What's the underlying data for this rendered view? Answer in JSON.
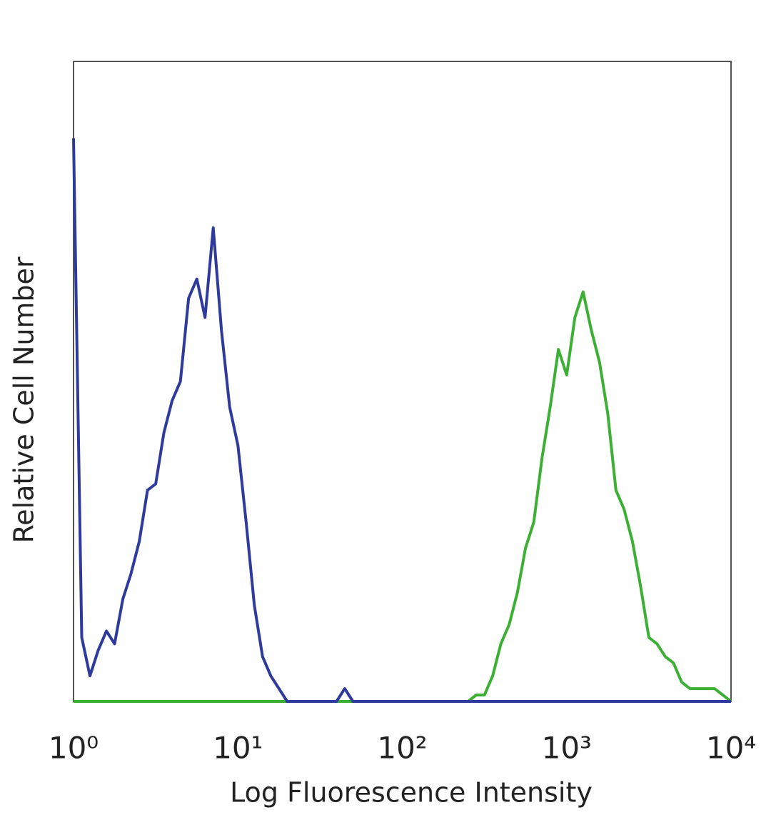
{
  "chart_data": {
    "type": "line",
    "xlabel": "Log Fluorescence Intensity",
    "ylabel": "Relative Cell Number",
    "xscale": "log",
    "xlim": [
      1,
      10000
    ],
    "xticks": [
      {
        "value": 1,
        "label": "10⁰"
      },
      {
        "value": 10,
        "label": "10¹"
      },
      {
        "value": 100,
        "label": "10²"
      },
      {
        "value": 1000,
        "label": "10³"
      },
      {
        "value": 10000,
        "label": "10⁴"
      }
    ],
    "ylim": [
      0,
      100
    ],
    "grid": false,
    "x": [
      1,
      1.122,
      1.259,
      1.413,
      1.585,
      1.778,
      1.995,
      2.239,
      2.512,
      2.818,
      3.162,
      3.548,
      3.981,
      4.467,
      5.012,
      5.623,
      6.31,
      7.079,
      7.943,
      8.913,
      10,
      11.22,
      12.59,
      14.13,
      15.85,
      17.78,
      19.95,
      22.39,
      25.12,
      28.18,
      31.62,
      35.48,
      39.81,
      44.67,
      50.12,
      56.23,
      63.1,
      70.79,
      79.43,
      89.13,
      100,
      112.2,
      125.9,
      141.3,
      158.5,
      177.8,
      199.5,
      223.9,
      251.2,
      281.8,
      316.2,
      354.8,
      398.1,
      446.7,
      501.2,
      562.3,
      631,
      707.9,
      794.3,
      891.3,
      1000,
      1122,
      1259,
      1413,
      1585,
      1778,
      1995,
      2239,
      2512,
      2818,
      3162,
      3548,
      3981,
      4467,
      5012,
      5623,
      6310,
      7079,
      7943,
      8913,
      10000
    ],
    "series": [
      {
        "color": "#3cb034",
        "values": [
          0,
          0,
          0,
          0,
          0,
          0,
          0,
          0,
          0,
          0,
          0,
          0,
          0,
          0,
          0,
          0,
          0,
          0,
          0,
          0,
          0,
          0,
          0,
          0,
          0,
          0,
          0,
          0,
          0,
          0,
          0,
          0,
          0,
          0,
          0,
          0,
          0,
          0,
          0,
          0,
          0,
          0,
          0,
          0,
          0,
          0,
          0,
          0,
          0,
          1,
          1,
          4,
          9,
          12,
          17,
          24,
          28,
          38,
          46,
          55,
          51,
          60,
          64,
          58,
          53,
          45,
          33,
          30,
          25,
          18,
          10,
          9,
          7,
          6,
          3,
          2,
          2,
          2,
          2,
          1,
          0
        ]
      },
      {
        "color": "#2e3a9c",
        "values": [
          88,
          10,
          4,
          8,
          11,
          9,
          16,
          20,
          25,
          33,
          34,
          42,
          47,
          50,
          63,
          66,
          60,
          74,
          58,
          46,
          40,
          28,
          15,
          7,
          4,
          2,
          0,
          0,
          0,
          0,
          0,
          0,
          0,
          2,
          0,
          0,
          0,
          0,
          0,
          0,
          0,
          0,
          0,
          0,
          0,
          0,
          0,
          0,
          0,
          0,
          0,
          0,
          0,
          0,
          0,
          0,
          0,
          0,
          0,
          0,
          0,
          0,
          0,
          0,
          0,
          0,
          0,
          0,
          0,
          0,
          0,
          0,
          0,
          0,
          0,
          0,
          0,
          0,
          0,
          0,
          0
        ]
      }
    ]
  }
}
